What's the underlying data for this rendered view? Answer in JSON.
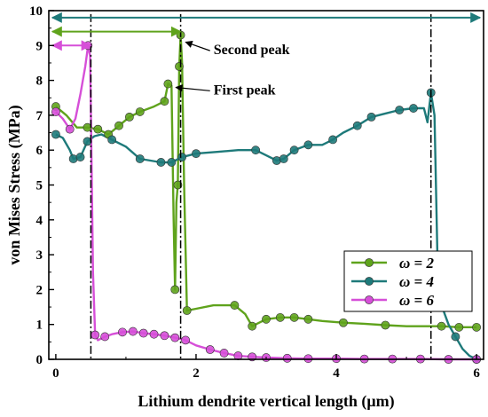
{
  "chart_data": {
    "type": "line",
    "xlabel": "Lithium dendrite vertical length (μm)",
    "ylabel": "von Mises Stress (MPa)",
    "xlim": [
      -0.1,
      6.1
    ],
    "ylim": [
      0,
      10
    ],
    "xticks": [
      "0",
      "2",
      "4",
      "6"
    ],
    "yticks": [
      "0",
      "1",
      "2",
      "3",
      "4",
      "5",
      "6",
      "7",
      "8",
      "9",
      "10"
    ],
    "legend": "lower-right",
    "series": [
      {
        "name": "ω = 2",
        "color": "#5fa31c",
        "points": [
          [
            0.0,
            7.25
          ],
          [
            0.15,
            7.0
          ],
          [
            0.3,
            6.65
          ],
          [
            0.45,
            6.65
          ],
          [
            0.6,
            6.6
          ],
          [
            0.75,
            6.45
          ],
          [
            0.9,
            6.7
          ],
          [
            1.05,
            6.95
          ],
          [
            1.2,
            7.1
          ],
          [
            1.4,
            7.25
          ],
          [
            1.55,
            7.4
          ],
          [
            1.6,
            7.9
          ],
          [
            1.65,
            7.85
          ],
          [
            1.68,
            4.0
          ],
          [
            1.7,
            2.0
          ],
          [
            1.72,
            4.5
          ],
          [
            1.74,
            5.0
          ],
          [
            1.76,
            8.4
          ],
          [
            1.78,
            9.3
          ],
          [
            1.8,
            8.5
          ],
          [
            1.83,
            5.0
          ],
          [
            1.87,
            1.4
          ],
          [
            2.0,
            1.45
          ],
          [
            2.25,
            1.55
          ],
          [
            2.55,
            1.55
          ],
          [
            2.7,
            1.3
          ],
          [
            2.8,
            0.95
          ],
          [
            2.9,
            1.05
          ],
          [
            3.0,
            1.15
          ],
          [
            3.2,
            1.2
          ],
          [
            3.4,
            1.2
          ],
          [
            3.6,
            1.15
          ],
          [
            3.8,
            1.1
          ],
          [
            4.1,
            1.05
          ],
          [
            4.4,
            1.02
          ],
          [
            4.7,
            0.98
          ],
          [
            5.0,
            0.95
          ],
          [
            5.3,
            0.95
          ],
          [
            5.5,
            0.95
          ],
          [
            5.75,
            0.92
          ],
          [
            6.0,
            0.92
          ]
        ],
        "markers_x": [
          0.0,
          0.45,
          0.6,
          0.75,
          0.9,
          1.05,
          1.2,
          1.55,
          1.6,
          1.7,
          1.74,
          1.76,
          1.78,
          1.87,
          2.55,
          2.8,
          3.0,
          3.2,
          3.4,
          3.6,
          4.1,
          4.7,
          5.5,
          5.75,
          6.0
        ]
      },
      {
        "name": "ω = 4",
        "color": "#1e7a7a",
        "points": [
          [
            0.0,
            6.45
          ],
          [
            0.1,
            6.35
          ],
          [
            0.2,
            6.0
          ],
          [
            0.25,
            5.75
          ],
          [
            0.35,
            5.8
          ],
          [
            0.45,
            6.25
          ],
          [
            0.55,
            6.4
          ],
          [
            0.65,
            6.45
          ],
          [
            0.8,
            6.3
          ],
          [
            1.0,
            6.1
          ],
          [
            1.2,
            5.75
          ],
          [
            1.35,
            5.7
          ],
          [
            1.5,
            5.65
          ],
          [
            1.65,
            5.65
          ],
          [
            1.8,
            5.8
          ],
          [
            2.0,
            5.9
          ],
          [
            2.3,
            5.95
          ],
          [
            2.6,
            6.0
          ],
          [
            2.85,
            6.0
          ],
          [
            3.0,
            5.85
          ],
          [
            3.15,
            5.7
          ],
          [
            3.25,
            5.75
          ],
          [
            3.4,
            6.0
          ],
          [
            3.6,
            6.15
          ],
          [
            3.8,
            6.15
          ],
          [
            3.95,
            6.3
          ],
          [
            4.1,
            6.5
          ],
          [
            4.3,
            6.7
          ],
          [
            4.5,
            6.95
          ],
          [
            4.7,
            7.05
          ],
          [
            4.9,
            7.15
          ],
          [
            5.1,
            7.2
          ],
          [
            5.25,
            7.2
          ],
          [
            5.3,
            6.8
          ],
          [
            5.35,
            7.65
          ],
          [
            5.4,
            7.0
          ],
          [
            5.45,
            2.2
          ],
          [
            5.5,
            1.55
          ],
          [
            5.6,
            1.0
          ],
          [
            5.7,
            0.65
          ],
          [
            5.8,
            0.3
          ],
          [
            5.9,
            0.1
          ],
          [
            6.0,
            0.0
          ]
        ],
        "markers_x": [
          0.0,
          0.25,
          0.35,
          0.45,
          0.8,
          1.2,
          1.5,
          1.65,
          1.8,
          2.0,
          2.85,
          3.15,
          3.25,
          3.4,
          3.6,
          3.95,
          4.3,
          4.5,
          4.9,
          5.1,
          5.35,
          5.5,
          5.7,
          6.0
        ]
      },
      {
        "name": "ω = 6",
        "color": "#d64fd8",
        "points": [
          [
            0.0,
            7.1
          ],
          [
            0.1,
            6.9
          ],
          [
            0.2,
            6.6
          ],
          [
            0.28,
            6.9
          ],
          [
            0.35,
            7.6
          ],
          [
            0.42,
            8.4
          ],
          [
            0.46,
            9.0
          ],
          [
            0.49,
            8.7
          ],
          [
            0.53,
            2.5
          ],
          [
            0.56,
            0.7
          ],
          [
            0.6,
            0.55
          ],
          [
            0.7,
            0.65
          ],
          [
            0.8,
            0.72
          ],
          [
            0.95,
            0.78
          ],
          [
            1.1,
            0.8
          ],
          [
            1.25,
            0.75
          ],
          [
            1.4,
            0.72
          ],
          [
            1.55,
            0.68
          ],
          [
            1.7,
            0.62
          ],
          [
            1.85,
            0.55
          ],
          [
            2.0,
            0.4
          ],
          [
            2.2,
            0.28
          ],
          [
            2.4,
            0.18
          ],
          [
            2.6,
            0.1
          ],
          [
            2.8,
            0.07
          ],
          [
            3.0,
            0.05
          ],
          [
            3.3,
            0.03
          ],
          [
            3.6,
            0.02
          ],
          [
            4.0,
            0.02
          ],
          [
            4.4,
            0.01
          ],
          [
            4.8,
            0.01
          ],
          [
            5.2,
            0.01
          ],
          [
            5.6,
            0.0
          ],
          [
            6.0,
            0.0
          ]
        ],
        "markers_x": [
          0.0,
          0.2,
          0.46,
          0.56,
          0.7,
          0.95,
          1.1,
          1.25,
          1.4,
          1.55,
          1.7,
          1.85,
          2.2,
          2.4,
          2.6,
          2.8,
          3.0,
          3.3,
          3.6,
          4.0,
          4.4,
          4.8,
          5.2,
          5.6,
          6.0
        ]
      }
    ],
    "vlines": [
      0.5,
      1.78,
      5.35
    ],
    "arrows": [
      {
        "x0": -0.1,
        "x1": 6.1,
        "y": 9.8,
        "color": "#1e7a7a"
      },
      {
        "x0": -0.1,
        "x1": 1.78,
        "y": 9.4,
        "color": "#5fa31c"
      },
      {
        "x0": -0.1,
        "x1": 0.5,
        "y": 9.0,
        "color": "#d64fd8"
      }
    ],
    "annotations": [
      {
        "text": "Second peak",
        "x": 2.25,
        "y": 8.75,
        "px": 1.8,
        "py": 9.15
      },
      {
        "text": "First peak",
        "x": 2.25,
        "y": 7.6,
        "px": 1.66,
        "py": 7.85
      }
    ]
  }
}
